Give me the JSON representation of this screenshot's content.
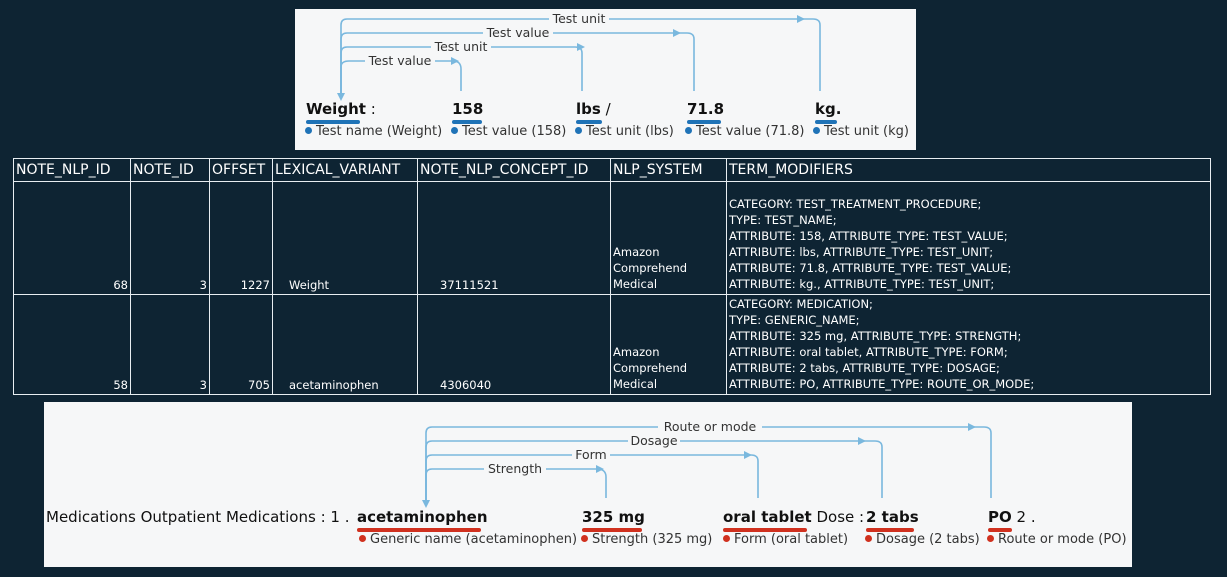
{
  "top_viz": {
    "arcs": [
      "Test unit",
      "Test value",
      "Test unit",
      "Test value"
    ],
    "tokens": [
      {
        "text": "Weight",
        "suffix": " :",
        "entity": "Test name (Weight)"
      },
      {
        "text": "158",
        "suffix": "",
        "entity": "Test value (158)"
      },
      {
        "text": "lbs",
        "suffix": " /",
        "entity": "Test unit (lbs)"
      },
      {
        "text": "71.8",
        "suffix": "",
        "entity": "Test value (71.8)"
      },
      {
        "text": "kg.",
        "suffix": "",
        "entity": "Test unit (kg)"
      }
    ],
    "accent": "#1f73b7",
    "arc_color": "#7ab8de"
  },
  "table": {
    "headers": [
      "NOTE_NLP_ID",
      "NOTE_ID",
      "OFFSET",
      "LEXICAL_VARIANT",
      "NOTE_NLP_CONCEPT_ID",
      "NLP_SYSTEM",
      "TERM_MODIFIERS"
    ],
    "rows": [
      {
        "note_nlp_id": "68",
        "note_id": "3",
        "offset": "1227",
        "lexical_variant": "Weight",
        "concept_id": "37111521",
        "nlp_system": [
          "Amazon",
          "Comprehend",
          "Medical"
        ],
        "term_modifiers": [
          "CATEGORY: TEST_TREATMENT_PROCEDURE;",
          "TYPE: TEST_NAME;",
          "ATTRIBUTE: 158, ATTRIBUTE_TYPE: TEST_VALUE;",
          "ATTRIBUTE: lbs, ATTRIBUTE_TYPE: TEST_UNIT;",
          "ATTRIBUTE: 71.8, ATTRIBUTE_TYPE: TEST_VALUE;",
          "ATTRIBUTE: kg., ATTRIBUTE_TYPE: TEST_UNIT;"
        ]
      },
      {
        "note_nlp_id": "58",
        "note_id": "3",
        "offset": "705",
        "lexical_variant": "acetaminophen",
        "concept_id": "4306040",
        "nlp_system": [
          "Amazon",
          "Comprehend",
          "Medical"
        ],
        "term_modifiers": [
          "CATEGORY: MEDICATION;",
          "TYPE: GENERIC_NAME;",
          "ATTRIBUTE: 325 mg, ATTRIBUTE_TYPE: STRENGTH;",
          "ATTRIBUTE: oral tablet, ATTRIBUTE_TYPE: FORM;",
          "ATTRIBUTE: 2 tabs, ATTRIBUTE_TYPE: DOSAGE;",
          "ATTRIBUTE: PO, ATTRIBUTE_TYPE: ROUTE_OR_MODE;"
        ]
      }
    ]
  },
  "bottom_viz": {
    "arcs": [
      "Route or mode",
      "Dosage",
      "Form",
      "Strength"
    ],
    "prefix": "Medications Outpatient Medications : 1 .",
    "tokens": [
      {
        "text": "acetaminophen",
        "suffix": "",
        "entity": "Generic name (acetaminophen)"
      },
      {
        "text": "325 mg",
        "suffix": "",
        "entity": "Strength (325 mg)"
      },
      {
        "text": "oral tablet",
        "suffix": " Dose :",
        "entity": "Form (oral tablet)"
      },
      {
        "text": "2 tabs",
        "suffix": "",
        "entity": "Dosage (2 tabs)"
      },
      {
        "text": "PO",
        "suffix": " 2 .",
        "entity": "Route or mode (PO)"
      }
    ],
    "accent": "#d0311f",
    "arc_color": "#7ab8de"
  }
}
